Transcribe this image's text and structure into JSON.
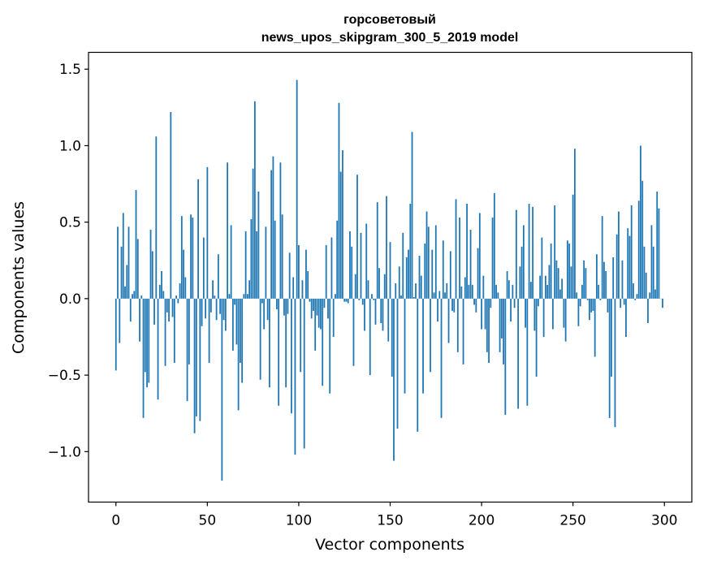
{
  "chart_data": {
    "type": "bar",
    "title_line1": "горсоветовый",
    "title_line2": "news_upos_skipgram_300_5_2019 model",
    "xlabel": "Vector components",
    "ylabel": "Components values",
    "xlim": [
      -15,
      315
    ],
    "ylim": [
      -1.33,
      1.61
    ],
    "xticks": [
      0,
      50,
      100,
      150,
      200,
      250,
      300
    ],
    "xtick_labels": [
      "0",
      "50",
      "100",
      "150",
      "200",
      "250",
      "300"
    ],
    "yticks": [
      -1.0,
      -0.5,
      0.0,
      0.5,
      1.0,
      1.5
    ],
    "ytick_labels": [
      "−1.0",
      "−0.5",
      "0.0",
      "0.5",
      "1.0",
      "1.5"
    ],
    "bar_color": "#1f77b4",
    "grid": false,
    "legend": "none",
    "values": [
      -0.47,
      0.47,
      -0.29,
      0.34,
      0.56,
      0.08,
      0.22,
      0.47,
      -0.15,
      0.03,
      0.05,
      0.71,
      0.39,
      -0.28,
      0.02,
      -0.78,
      -0.48,
      -0.58,
      -0.55,
      0.45,
      0.31,
      -0.17,
      1.06,
      -0.66,
      0.09,
      0.18,
      0.05,
      -0.44,
      -0.09,
      -0.15,
      1.22,
      -0.12,
      -0.42,
      0.02,
      -0.03,
      0.1,
      0.54,
      0.32,
      0.14,
      -0.67,
      -0.43,
      0.55,
      0.53,
      -0.88,
      -0.77,
      0.78,
      -0.8,
      -0.18,
      0.4,
      -0.13,
      0.86,
      -0.42,
      -0.09,
      0.12,
      0.02,
      -0.14,
      0.29,
      -0.1,
      -1.19,
      -0.14,
      -0.21,
      0.89,
      0.03,
      0.48,
      -0.34,
      -0.04,
      -0.3,
      -0.73,
      -0.42,
      -0.55,
      0.03,
      0.44,
      0.03,
      0.12,
      0.52,
      0.85,
      1.29,
      0.44,
      0.7,
      -0.53,
      -0.03,
      -0.2,
      0.47,
      -0.14,
      -0.58,
      0.84,
      0.93,
      0.51,
      -0.07,
      -0.7,
      0.89,
      0.55,
      -0.11,
      -0.58,
      -0.1,
      0.3,
      -0.75,
      0.14,
      -1.02,
      1.43,
      0.35,
      -0.48,
      0.12,
      -0.98,
      0.32,
      0.18,
      -0.02,
      -0.13,
      -0.08,
      -0.34,
      -0.11,
      -0.19,
      -0.2,
      -0.57,
      -0.06,
      0.35,
      -0.13,
      -0.62,
      0.4,
      -0.25,
      0.03,
      0.51,
      1.28,
      0.83,
      0.97,
      -0.02,
      -0.02,
      -0.03,
      0.44,
      0.34,
      -0.44,
      0.16,
      0.81,
      -0.01,
      0.43,
      -0.04,
      -0.21,
      0.49,
      0.12,
      -0.5,
      0.03,
      -0.01,
      -0.17,
      0.63,
      0.2,
      -0.16,
      -0.21,
      0.16,
      0.67,
      -0.28,
      0.37,
      -0.51,
      -1.06,
      0.1,
      -0.85,
      0.21,
      0.02,
      0.43,
      -0.62,
      0.27,
      0.32,
      0.62,
      1.09,
      0.01,
      0.1,
      -0.87,
      0.28,
      0.15,
      -0.62,
      0.36,
      0.57,
      0.47,
      -0.48,
      0.32,
      0.04,
      0.48,
      -0.15,
      0.05,
      -0.78,
      0.38,
      0.04,
      0.1,
      -0.29,
      0.31,
      -0.08,
      -0.09,
      0.65,
      -0.35,
      0.53,
      0.08,
      -0.43,
      0.14,
      0.62,
      0.09,
      0.45,
      0.09,
      -0.04,
      -0.09,
      0.33,
      0.56,
      -0.2,
      0.15,
      -0.2,
      -0.35,
      -0.42,
      -0.06,
      0.53,
      0.69,
      0.09,
      0.04,
      -0.35,
      -0.26,
      -0.43,
      -0.76,
      0.18,
      0.12,
      -0.15,
      0.09,
      -0.06,
      0.58,
      -0.72,
      0.21,
      0.34,
      0.48,
      -0.19,
      -0.7,
      0.62,
      0.11,
      0.6,
      -0.21,
      -0.51,
      -0.05,
      0.15,
      0.4,
      -0.25,
      0.15,
      0.09,
      0.22,
      0.36,
      -0.2,
      0.61,
      0.25,
      0.2,
      0.06,
      0.13,
      -0.19,
      -0.28,
      0.38,
      0.36,
      0.21,
      0.68,
      0.98,
      0.04,
      -0.18,
      -0.05,
      0.09,
      0.25,
      0.2,
      -0.01,
      -0.14,
      -0.09,
      -0.08,
      -0.38,
      0.29,
      0.09,
      -0.01,
      0.54,
      0.24,
      0.18,
      -0.09,
      -0.78,
      -0.51,
      0.27,
      -0.84,
      0.42,
      0.57,
      -0.06,
      0.25,
      -0.04,
      -0.25,
      0.46,
      0.41,
      0.61,
      0.1,
      -0.01,
      0.03,
      0.64,
      1.0,
      0.77,
      0.34,
      0.17,
      -0.16,
      0.04,
      0.48,
      0.34,
      0.06,
      0.7,
      0.59,
      0.0,
      -0.06
    ]
  }
}
